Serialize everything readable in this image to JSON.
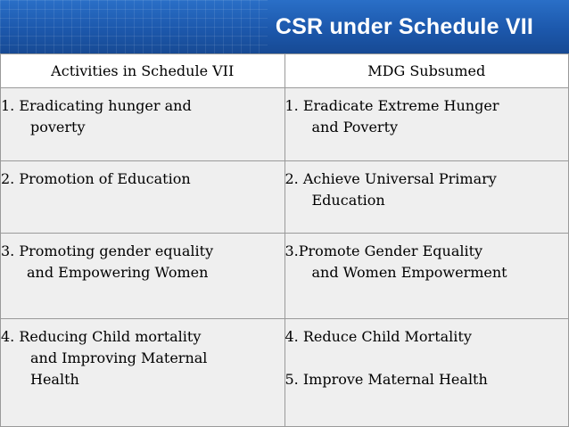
{
  "title": "CSR under Schedule VII",
  "columns": [
    "Activities in Schedule VII",
    "MDG Subsumed"
  ],
  "rows": [
    {
      "left": [
        "1. Eradicating hunger and",
        "poverty"
      ],
      "right": [
        "1. Eradicate Extreme Hunger",
        "and Poverty"
      ]
    },
    {
      "left": [
        "2. Promotion of Education"
      ],
      "right": [
        "2. Achieve Universal Primary",
        "Education"
      ]
    },
    {
      "left": [
        "3. Promoting gender equality",
        "and Empowering Women"
      ],
      "right": [
        "3.Promote Gender Equality",
        "and Women Empowerment"
      ]
    },
    {
      "left": [
        "4. Reducing Child mortality",
        "and Improving Maternal",
        "Health"
      ],
      "right": [
        "4. Reduce Child Mortality",
        "5. Improve Maternal Health"
      ]
    }
  ]
}
